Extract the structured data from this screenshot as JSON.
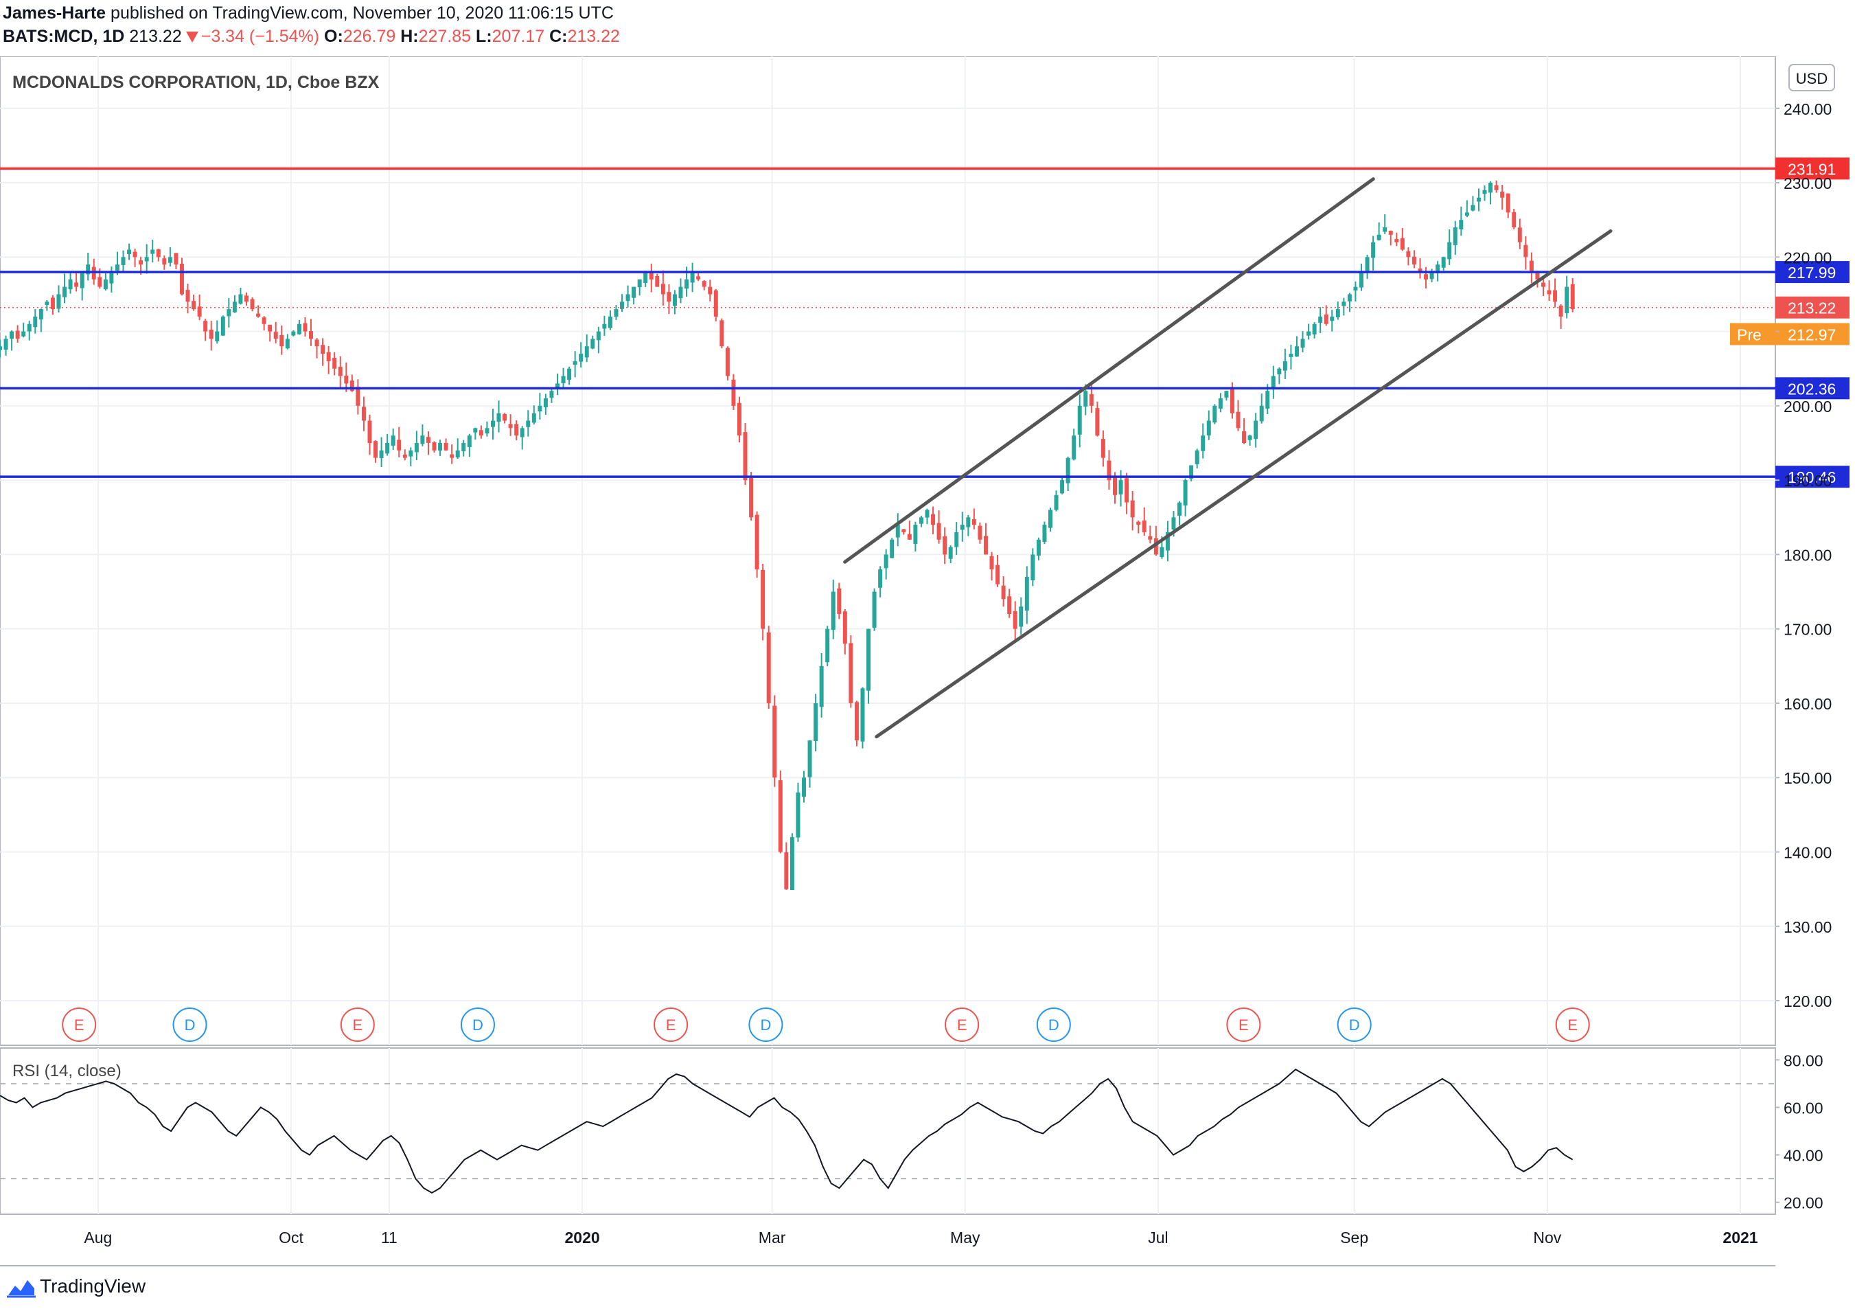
{
  "header": {
    "author": "James-Harte",
    "published_text": "published on TradingView.com, November 10, 2020 11:06:15 UTC",
    "symbol": "BATS:MCD, 1D",
    "last": "213.22",
    "change": "−3.34 (−1.54%)",
    "o_label": "O:",
    "o_value": "226.79",
    "h_label": "H:",
    "h_value": "227.85",
    "l_label": "L:",
    "l_value": "207.17",
    "c_label": "C:",
    "c_value": "213.22"
  },
  "chart_title": "MCDONALDS CORPORATION, 1D, Cboe BZX",
  "currency": "USD",
  "rsi_label": "RSI (14, close)",
  "footer": {
    "brand": "TradingView"
  },
  "colors": {
    "up": "#26a69a",
    "down": "#ef5350",
    "blue_line": "#1d2bd8",
    "red_line": "#f23030",
    "channel": "#555555",
    "pre": "#f7982b"
  },
  "chart_data": {
    "type": "candlestick",
    "x_ticks": [
      "Aug",
      "Oct",
      "11",
      "2020",
      "Mar",
      "May",
      "Jul",
      "Sep",
      "Nov",
      "2021"
    ],
    "y_ticks": [
      120,
      130,
      140,
      150,
      160,
      170,
      180,
      190,
      200,
      210,
      220,
      230,
      240
    ],
    "y_tick_labels": [
      "120.00",
      "130.00",
      "140.00",
      "150.00",
      "160.00",
      "170.00",
      "180.00",
      "190.00",
      "200.00",
      "",
      "220.00",
      "230.00",
      "240.00"
    ],
    "ylim": [
      114,
      247
    ],
    "price_series_daily_close_estimate": {
      "start": "2019-07-01",
      "end": "2020-11-09",
      "close": [
        208,
        209,
        210,
        209,
        210,
        211,
        212,
        213,
        214,
        213,
        215,
        216,
        217,
        216,
        218,
        219,
        217,
        216,
        217,
        218,
        219,
        220,
        221,
        220,
        219,
        220,
        221,
        220,
        219,
        220,
        219,
        215,
        214,
        213,
        212,
        210,
        209,
        210,
        212,
        213,
        214,
        215,
        214,
        213,
        212,
        211,
        210,
        209,
        208,
        209,
        210,
        211,
        210,
        209,
        208,
        207,
        206,
        205,
        204,
        203,
        202,
        200,
        198,
        195,
        193,
        194,
        195,
        196,
        194,
        193,
        194,
        195,
        196,
        195,
        194,
        195,
        194,
        193,
        194,
        195,
        196,
        197,
        196,
        197,
        198,
        199,
        198,
        197,
        196,
        197,
        198,
        199,
        200,
        201,
        202,
        203,
        204,
        205,
        206,
        207,
        208,
        209,
        210,
        211,
        212,
        213,
        214,
        215,
        216,
        217,
        218,
        217,
        216,
        215,
        214,
        215,
        216,
        217,
        218,
        217,
        216,
        215,
        212,
        208,
        204,
        200,
        196,
        190,
        185,
        178,
        170,
        160,
        150,
        140,
        135,
        142,
        148,
        150,
        155,
        160,
        165,
        170,
        175,
        172,
        168,
        160,
        155,
        162,
        170,
        175,
        178,
        180,
        182,
        184,
        183,
        182,
        184,
        185,
        186,
        184,
        182,
        180,
        181,
        183,
        184,
        185,
        184,
        182,
        180,
        178,
        176,
        174,
        172,
        170,
        173,
        177,
        180,
        182,
        184,
        186,
        188,
        190,
        193,
        196,
        200,
        202,
        200,
        196,
        193,
        190,
        188,
        190,
        187,
        185,
        184,
        183,
        182,
        180,
        181,
        183,
        185,
        187,
        190,
        192,
        194,
        196,
        198,
        200,
        201,
        202,
        199,
        197,
        195,
        196,
        198,
        200,
        202,
        204,
        205,
        206,
        207,
        208,
        209,
        210,
        211,
        212,
        211,
        212,
        213,
        214,
        215,
        216,
        218,
        220,
        222,
        223,
        224,
        223,
        222,
        221,
        220,
        219,
        218,
        217,
        218,
        219,
        220,
        222,
        224,
        225,
        226,
        227,
        228,
        229,
        230,
        229,
        228,
        226,
        224,
        222,
        220,
        218,
        217,
        216,
        215,
        214,
        212,
        216,
        213
      ],
      "note_time": "estimated from candles"
    },
    "annotations": {
      "horizontal_levels": [
        {
          "label": "231.91",
          "value": 231.91,
          "color": "#f23030"
        },
        {
          "label": "217.99",
          "value": 217.99,
          "color": "#1d2bd8"
        },
        {
          "label": "202.36",
          "value": 202.36,
          "color": "#1d2bd8"
        },
        {
          "label": "190.46",
          "value": 190.46,
          "color": "#1d2bd8"
        }
      ],
      "last_price_label": "213.22",
      "pre_label": "Pre",
      "pre_price_label": "212.97",
      "channel_upper": [
        {
          "date": "2020-03-24",
          "value": 179.0
        },
        {
          "date": "2020-09-07",
          "value": 230.5
        }
      ],
      "channel_lower": [
        {
          "date": "2020-04-03",
          "value": 155.5
        },
        {
          "date": "2020-11-21",
          "value": 223.5
        }
      ],
      "events": [
        {
          "type": "E",
          "date": "2019-07-26"
        },
        {
          "type": "D",
          "date": "2019-08-30"
        },
        {
          "type": "E",
          "date": "2019-10-22"
        },
        {
          "type": "D",
          "date": "2019-11-29"
        },
        {
          "type": "E",
          "date": "2020-01-29"
        },
        {
          "type": "D",
          "date": "2020-02-28"
        },
        {
          "type": "E",
          "date": "2020-04-30"
        },
        {
          "type": "D",
          "date": "2020-05-29"
        },
        {
          "type": "E",
          "date": "2020-07-28"
        },
        {
          "type": "D",
          "date": "2020-09-01"
        },
        {
          "type": "E",
          "date": "2020-11-09"
        }
      ]
    },
    "rsi": {
      "y_ticks": [
        20,
        40,
        60,
        80
      ],
      "y_tick_labels": [
        "20.00",
        "40.00",
        "60.00",
        "80.00"
      ],
      "ylim": [
        15,
        85
      ],
      "bands": [
        30,
        70
      ],
      "values_estimate": [
        65,
        63,
        62,
        64,
        60,
        62,
        63,
        64,
        66,
        67,
        68,
        69,
        70,
        71,
        70,
        68,
        66,
        62,
        60,
        57,
        52,
        50,
        55,
        60,
        62,
        60,
        58,
        54,
        50,
        48,
        52,
        56,
        60,
        58,
        55,
        50,
        46,
        42,
        40,
        44,
        46,
        48,
        45,
        42,
        40,
        38,
        42,
        46,
        48,
        45,
        38,
        30,
        26,
        24,
        26,
        30,
        34,
        38,
        40,
        42,
        40,
        38,
        40,
        42,
        44,
        43,
        42,
        44,
        46,
        48,
        50,
        52,
        54,
        53,
        52,
        54,
        56,
        58,
        60,
        62,
        64,
        68,
        72,
        74,
        73,
        70,
        68,
        66,
        64,
        62,
        60,
        58,
        56,
        60,
        62,
        64,
        60,
        58,
        55,
        50,
        44,
        35,
        28,
        26,
        30,
        34,
        38,
        36,
        30,
        26,
        32,
        38,
        42,
        45,
        48,
        50,
        53,
        55,
        57,
        60,
        62,
        60,
        58,
        56,
        55,
        54,
        52,
        50,
        49,
        52,
        54,
        57,
        60,
        63,
        66,
        70,
        72,
        68,
        60,
        54,
        52,
        50,
        48,
        44,
        40,
        42,
        44,
        48,
        50,
        52,
        55,
        57,
        60,
        62,
        64,
        66,
        68,
        70,
        73,
        76,
        74,
        72,
        70,
        68,
        66,
        62,
        58,
        54,
        52,
        55,
        58,
        60,
        62,
        64,
        66,
        68,
        70,
        72,
        70,
        66,
        62,
        58,
        54,
        50,
        46,
        42,
        35,
        33,
        35,
        38,
        42,
        43,
        40,
        38
      ]
    }
  }
}
